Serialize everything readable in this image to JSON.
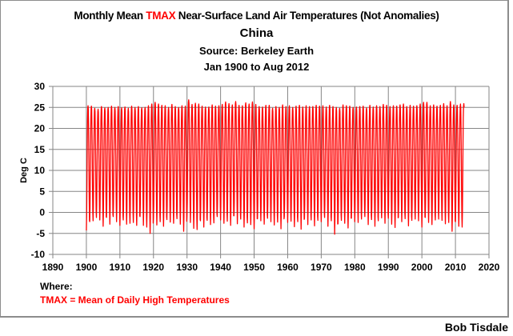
{
  "chart_data": {
    "type": "line",
    "title": {
      "prefix": "Monthly Mean ",
      "highlight": "TMAX",
      "suffix": " Near-Surface Land Air Temperatures (Not Anomalies)",
      "line2": "China",
      "line3": "Source: Berkeley Earth",
      "line4": "Jan 1900 to Aug 2012"
    },
    "xlabel": "",
    "ylabel": "Deg C",
    "xlim": [
      1890,
      2020
    ],
    "ylim": [
      -10,
      30
    ],
    "xticks": [
      1890,
      1900,
      1910,
      1920,
      1930,
      1940,
      1950,
      1960,
      1970,
      1980,
      1990,
      2000,
      2010,
      2020
    ],
    "yticks": [
      -10,
      -5,
      0,
      5,
      10,
      15,
      20,
      25,
      30
    ],
    "grid": true,
    "series_color": "#ff0000",
    "series": [
      {
        "name": "China TMAX monthly mean",
        "start": "Jan 1900",
        "end": "Aug 2012",
        "start_year": 1900,
        "months_in_last_year": 8,
        "description": "Seasonal cycle; values given as approximate annual summer peak and winter trough per year (Deg C)",
        "annual_max": [
          25.4,
          25.3,
          24.8,
          24.6,
          25.2,
          24.9,
          25.0,
          25.3,
          25.0,
          25.2,
          24.9,
          25.1,
          24.8,
          25.3,
          25.0,
          25.2,
          24.9,
          25.0,
          25.4,
          25.8,
          26.2,
          25.8,
          25.5,
          25.4,
          25.0,
          25.7,
          25.2,
          25.0,
          25.4,
          25.3,
          26.8,
          25.7,
          26.0,
          25.8,
          25.3,
          25.1,
          25.1,
          25.6,
          25.3,
          25.4,
          25.7,
          26.3,
          25.9,
          25.6,
          26.4,
          25.5,
          25.4,
          26.1,
          25.8,
          26.3,
          25.7,
          25.2,
          25.1,
          25.5,
          25.5,
          24.8,
          25.2,
          25.0,
          25.6,
          25.2,
          25.4,
          25.0,
          25.3,
          25.5,
          25.1,
          25.4,
          25.2,
          25.2,
          25.5,
          25.3,
          25.4,
          25.1,
          25.5,
          25.2,
          25.0,
          24.8,
          25.6,
          25.4,
          25.3,
          25.0,
          25.1,
          25.2,
          25.3,
          24.9,
          25.5,
          25.1,
          25.4,
          25.2,
          25.7,
          25.5,
          25.2,
          25.4,
          25.3,
          25.6,
          25.8,
          25.2,
          25.5,
          25.3,
          25.4,
          25.8,
          26.2,
          26.2,
          25.4,
          25.6,
          25.3,
          25.5,
          25.9,
          25.4,
          26.4,
          25.6,
          25.5,
          25.8,
          25.9
        ],
        "annual_min": [
          -4.3,
          -2.2,
          -2.0,
          -1.2,
          -1.8,
          -3.3,
          -1.2,
          -2.8,
          -1.0,
          -2.2,
          -3.1,
          -1.8,
          -2.8,
          -2.6,
          -2.4,
          -3.1,
          -1.0,
          -3.1,
          -3.5,
          -5.0,
          -1.3,
          -3.0,
          -2.2,
          -3.3,
          -1.7,
          -2.3,
          -2.6,
          -1.5,
          -2.8,
          -4.5,
          -0.8,
          -2.4,
          -3.8,
          -4.1,
          -2.0,
          -3.5,
          -1.9,
          -2.9,
          -2.5,
          -1.0,
          -1.8,
          -2.6,
          -2.1,
          -3.1,
          -0.8,
          -2.7,
          -1.6,
          -3.5,
          -2.5,
          -2.9,
          -3.9,
          -1.5,
          -2.0,
          -2.8,
          -1.4,
          -2.2,
          -3.0,
          -2.3,
          -3.9,
          -1.0,
          -2.4,
          -2.1,
          -3.4,
          -2.2,
          -4.0,
          -1.5,
          -2.9,
          -1.8,
          -3.2,
          -1.9,
          -2.2,
          -1.2,
          -3.3,
          -2.0,
          -5.2,
          -2.7,
          -1.9,
          -2.6,
          -3.7,
          -1.4,
          -2.2,
          -2.4,
          -1.6,
          -1.0,
          -2.9,
          -1.7,
          -3.3,
          -2.0,
          -1.3,
          -2.6,
          -1.4,
          -2.8,
          -3.6,
          -1.2,
          -2.2,
          -1.5,
          -3.2,
          -1.9,
          -1.6,
          -2.0,
          -3.5,
          -1.2,
          -2.4,
          -2.9,
          -1.8,
          -1.6,
          -1.9,
          -2.7,
          -2.4,
          -4.5,
          -2.2,
          -3.3,
          -3.5
        ]
      }
    ]
  },
  "footer": {
    "where_label": "Where:",
    "definition": "TMAX = Mean of Daily High Temperatures",
    "credit": "Bob Tisdale"
  }
}
